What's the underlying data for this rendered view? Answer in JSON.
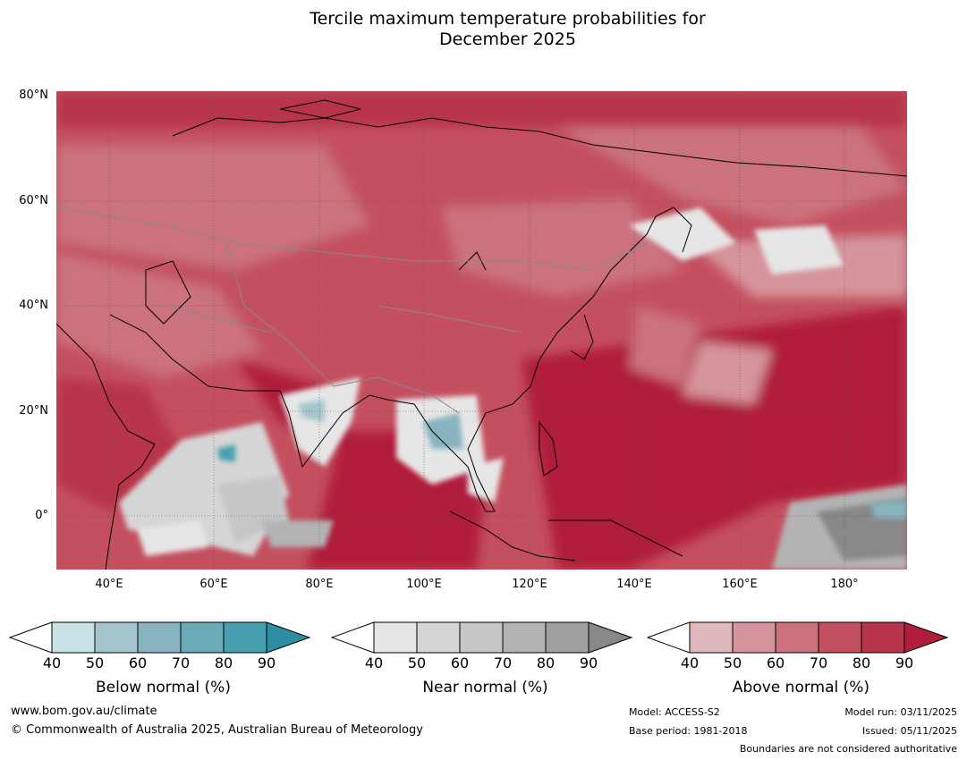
{
  "title_line1": "Tercile maximum temperature probabilities for",
  "title_line2": "December 2025",
  "map": {
    "lat_labels": [
      "80°N",
      "60°N",
      "40°N",
      "20°N",
      "0°"
    ],
    "lon_labels": [
      "40°E",
      "60°E",
      "80°E",
      "100°E",
      "120°E",
      "140°E",
      "160°E",
      "180°"
    ],
    "extent": {
      "lon_min": 30,
      "lon_max": 192,
      "lat_min": -10,
      "lat_max": 80
    }
  },
  "legends": [
    {
      "caption": "Below normal (%)",
      "ticks": [
        "40",
        "50",
        "60",
        "70",
        "80",
        "90"
      ],
      "colors": [
        "#ffffff",
        "#c8e2e8",
        "#a5c5cc",
        "#87b4bf",
        "#6aabb7",
        "#46a0b0",
        "#2e8fa3"
      ]
    },
    {
      "caption": "Near normal (%)",
      "ticks": [
        "40",
        "50",
        "60",
        "70",
        "80",
        "90"
      ],
      "colors": [
        "#ffffff",
        "#e6e6e6",
        "#d6d6d6",
        "#c6c6c6",
        "#b3b3b3",
        "#a0a0a0",
        "#888888"
      ]
    },
    {
      "caption": "Above normal (%)",
      "ticks": [
        "40",
        "50",
        "60",
        "70",
        "80",
        "90"
      ],
      "colors": [
        "#ffffff",
        "#e0b9bf",
        "#d6949d",
        "#cb727e",
        "#c4505f",
        "#b8344a",
        "#b01d3a"
      ]
    }
  ],
  "footer": {
    "url": "www.bom.gov.au/climate",
    "copyright": "© Commonwealth of Australia 2025, Australian Bureau of Meteorology",
    "model": "Model: ACCESS-S2",
    "base_period": "Base period: 1981-2018",
    "model_run": "Model run: 03/11/2025",
    "issued": "Issued: 05/11/2025",
    "disclaimer": "Boundaries are not considered authoritative"
  }
}
